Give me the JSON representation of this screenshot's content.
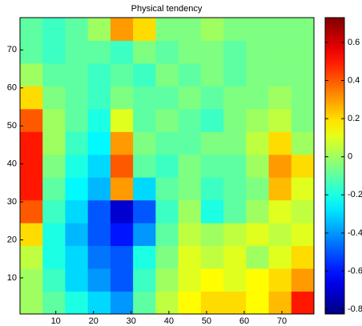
{
  "chart_data": {
    "type": "heatmap",
    "title": "Physical tendency",
    "colormap": "jet",
    "x": [
      3.5,
      9.5,
      15.5,
      21.5,
      27.5,
      33.5,
      39.5,
      45.5,
      51.5,
      57.5,
      63.5,
      69.5,
      75.5
    ],
    "y": [
      3.5,
      9.5,
      15.5,
      21.5,
      27.5,
      33.5,
      39.5,
      45.5,
      51.5,
      57.5,
      63.5,
      69.5,
      75.5
    ],
    "z": [
      [
        0.0,
        -0.1,
        -0.2,
        -0.3,
        -0.4,
        -0.1,
        0.05,
        0.15,
        0.2,
        0.2,
        0.15,
        0.25,
        0.5
      ],
      [
        0.0,
        -0.15,
        -0.3,
        -0.4,
        -0.5,
        -0.15,
        0.0,
        0.1,
        0.15,
        0.1,
        0.15,
        0.2,
        0.3
      ],
      [
        0.05,
        -0.2,
        -0.3,
        -0.45,
        -0.5,
        -0.2,
        -0.05,
        0.1,
        0.05,
        0.1,
        0.0,
        0.1,
        0.2
      ],
      [
        0.2,
        -0.2,
        -0.35,
        -0.5,
        -0.6,
        -0.4,
        -0.1,
        0.05,
        0.0,
        0.05,
        0.1,
        0.05,
        0.1
      ],
      [
        0.4,
        -0.15,
        -0.3,
        -0.5,
        -0.7,
        -0.5,
        -0.15,
        0.0,
        -0.2,
        -0.1,
        0.0,
        0.1,
        0.05
      ],
      [
        0.5,
        -0.1,
        -0.25,
        -0.35,
        0.3,
        -0.3,
        -0.1,
        -0.05,
        -0.15,
        -0.1,
        -0.05,
        0.25,
        0.1
      ],
      [
        0.5,
        -0.05,
        -0.2,
        -0.3,
        0.4,
        -0.1,
        -0.15,
        -0.05,
        -0.1,
        -0.1,
        0.0,
        0.3,
        0.2
      ],
      [
        0.5,
        0.0,
        -0.15,
        -0.25,
        0.3,
        -0.05,
        -0.1,
        -0.1,
        -0.05,
        -0.05,
        0.05,
        0.2,
        0.0
      ],
      [
        0.4,
        0.0,
        -0.1,
        -0.2,
        0.1,
        -0.1,
        -0.05,
        -0.1,
        -0.15,
        -0.05,
        0.0,
        0.05,
        -0.05
      ],
      [
        0.2,
        -0.05,
        -0.1,
        -0.15,
        -0.05,
        -0.1,
        -0.1,
        -0.05,
        -0.1,
        -0.05,
        -0.05,
        0.0,
        -0.05
      ],
      [
        0.0,
        -0.1,
        -0.1,
        -0.15,
        -0.1,
        -0.15,
        -0.05,
        -0.1,
        -0.05,
        -0.1,
        -0.05,
        -0.05,
        -0.05
      ],
      [
        -0.1,
        -0.15,
        -0.1,
        -0.1,
        -0.15,
        -0.05,
        -0.1,
        -0.05,
        -0.05,
        -0.1,
        -0.05,
        -0.05,
        -0.05
      ],
      [
        -0.1,
        -0.15,
        -0.1,
        0.0,
        0.3,
        0.2,
        -0.05,
        -0.05,
        0.0,
        -0.05,
        -0.05,
        -0.05,
        -0.05
      ]
    ],
    "xlim": [
      0.5,
      78.5
    ],
    "ylim": [
      0.5,
      78.5
    ],
    "xticks": [
      10,
      20,
      30,
      40,
      50,
      60,
      70
    ],
    "yticks": [
      10,
      20,
      30,
      40,
      50,
      60,
      70
    ],
    "clim": [
      -0.825,
      0.73
    ],
    "cticks": [
      -0.8,
      -0.6,
      -0.4,
      -0.2,
      0,
      0.2,
      0.4,
      0.6
    ]
  }
}
